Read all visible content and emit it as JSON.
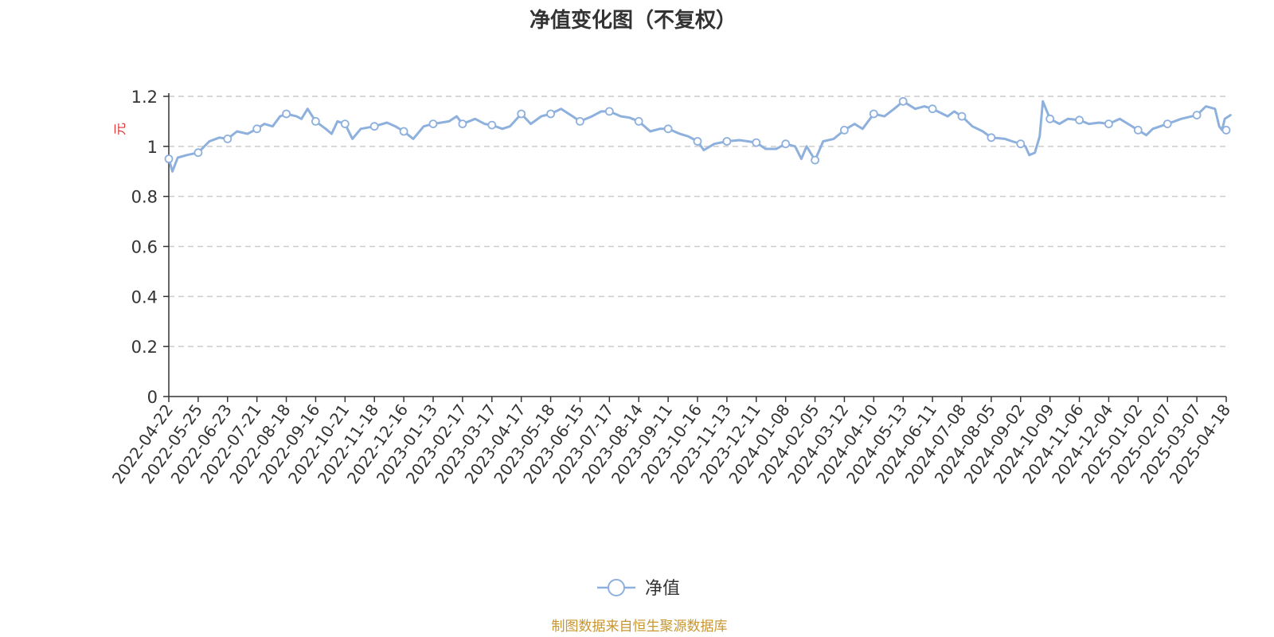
{
  "source_note": "制图数据来自恒生聚源数据库",
  "colors": {
    "series": "#8eb0dd",
    "axis": "#333333",
    "grid": "#cccccc",
    "unit": "#e03030",
    "source": "#c8962e"
  },
  "chart_data": {
    "type": "line",
    "title": "净值变化图（不复权）",
    "xlabel": "",
    "ylabel": "元",
    "ylim": [
      0,
      1.2
    ],
    "yticks": [
      0,
      0.2,
      0.4,
      0.6,
      0.8,
      1,
      1.2
    ],
    "ytick_labels": [
      "0",
      "0.2",
      "0.4",
      "0.6",
      "0.8",
      "1",
      "1.2"
    ],
    "grid": true,
    "grid_style": "dashed",
    "legend": "bottom-center",
    "xticks": [
      "2022-04-22",
      "2022-05-25",
      "2022-06-23",
      "2022-07-21",
      "2022-08-18",
      "2022-09-16",
      "2022-10-21",
      "2022-11-18",
      "2022-12-16",
      "2023-01-13",
      "2023-02-17",
      "2023-03-17",
      "2023-04-17",
      "2023-05-18",
      "2023-06-15",
      "2023-07-17",
      "2023-08-14",
      "2023-09-11",
      "2023-10-16",
      "2023-11-13",
      "2023-12-11",
      "2024-01-08",
      "2024-02-05",
      "2024-03-12",
      "2024-04-10",
      "2024-05-13",
      "2024-06-11",
      "2024-07-08",
      "2024-08-05",
      "2024-09-02",
      "2024-10-09",
      "2024-11-06",
      "2024-12-04",
      "2025-01-02",
      "2025-02-07",
      "2025-03-07",
      "2025-04-18"
    ],
    "series": [
      {
        "name": "净值",
        "x": [
          "2022-04-22",
          "2022-05-25",
          "2022-06-23",
          "2022-07-21",
          "2022-08-18",
          "2022-09-16",
          "2022-10-21",
          "2022-11-18",
          "2022-12-16",
          "2023-01-13",
          "2023-02-17",
          "2023-03-17",
          "2023-04-17",
          "2023-05-18",
          "2023-06-15",
          "2023-07-17",
          "2023-08-14",
          "2023-09-11",
          "2023-10-16",
          "2023-11-13",
          "2023-12-11",
          "2024-01-08",
          "2024-02-05",
          "2024-03-12",
          "2024-04-10",
          "2024-05-13",
          "2024-06-11",
          "2024-07-08",
          "2024-08-05",
          "2024-09-02",
          "2024-10-09",
          "2024-11-06",
          "2024-12-04",
          "2025-01-02",
          "2025-02-07",
          "2025-03-07",
          "2025-04-18"
        ],
        "values": [
          0.95,
          0.975,
          1.03,
          1.07,
          1.13,
          1.1,
          1.09,
          1.08,
          1.06,
          1.09,
          1.09,
          1.085,
          1.13,
          1.13,
          1.1,
          1.14,
          1.1,
          1.07,
          1.02,
          1.02,
          1.015,
          1.01,
          0.945,
          1.065,
          1.13,
          1.18,
          1.15,
          1.12,
          1.035,
          1.01,
          1.11,
          1.105,
          1.09,
          1.065,
          1.09,
          1.125,
          1.065
        ],
        "dense": [
          [
            "2022-04-22",
            0.95
          ],
          [
            "2022-04-26",
            0.9
          ],
          [
            "2022-05-02",
            0.955
          ],
          [
            "2022-05-12",
            0.965
          ],
          [
            "2022-05-25",
            0.975
          ],
          [
            "2022-06-05",
            1.02
          ],
          [
            "2022-06-15",
            1.035
          ],
          [
            "2022-06-23",
            1.03
          ],
          [
            "2022-07-02",
            1.06
          ],
          [
            "2022-07-12",
            1.05
          ],
          [
            "2022-07-21",
            1.07
          ],
          [
            "2022-07-28",
            1.09
          ],
          [
            "2022-08-05",
            1.08
          ],
          [
            "2022-08-12",
            1.12
          ],
          [
            "2022-08-18",
            1.13
          ],
          [
            "2022-08-28",
            1.12
          ],
          [
            "2022-09-02",
            1.11
          ],
          [
            "2022-09-08",
            1.15
          ],
          [
            "2022-09-16",
            1.1
          ],
          [
            "2022-09-28",
            1.07
          ],
          [
            "2022-10-05",
            1.05
          ],
          [
            "2022-10-12",
            1.1
          ],
          [
            "2022-10-21",
            1.09
          ],
          [
            "2022-10-28",
            1.03
          ],
          [
            "2022-11-05",
            1.07
          ],
          [
            "2022-11-18",
            1.08
          ],
          [
            "2022-11-30",
            1.095
          ],
          [
            "2022-12-08",
            1.08
          ],
          [
            "2022-12-16",
            1.06
          ],
          [
            "2022-12-25",
            1.03
          ],
          [
            "2023-01-04",
            1.08
          ],
          [
            "2023-01-13",
            1.09
          ],
          [
            "2023-02-01",
            1.1
          ],
          [
            "2023-02-10",
            1.12
          ],
          [
            "2023-02-17",
            1.09
          ],
          [
            "2023-03-01",
            1.11
          ],
          [
            "2023-03-10",
            1.09
          ],
          [
            "2023-03-17",
            1.085
          ],
          [
            "2023-03-28",
            1.07
          ],
          [
            "2023-04-05",
            1.08
          ],
          [
            "2023-04-17",
            1.13
          ],
          [
            "2023-04-27",
            1.09
          ],
          [
            "2023-05-08",
            1.12
          ],
          [
            "2023-05-18",
            1.13
          ],
          [
            "2023-05-28",
            1.15
          ],
          [
            "2023-06-08",
            1.12
          ],
          [
            "2023-06-15",
            1.1
          ],
          [
            "2023-06-28",
            1.12
          ],
          [
            "2023-07-08",
            1.14
          ],
          [
            "2023-07-17",
            1.14
          ],
          [
            "2023-07-28",
            1.12
          ],
          [
            "2023-08-05",
            1.115
          ],
          [
            "2023-08-14",
            1.1
          ],
          [
            "2023-08-25",
            1.06
          ],
          [
            "2023-09-03",
            1.07
          ],
          [
            "2023-09-11",
            1.07
          ],
          [
            "2023-09-25",
            1.05
          ],
          [
            "2023-10-05",
            1.04
          ],
          [
            "2023-10-16",
            1.02
          ],
          [
            "2023-10-22",
            0.985
          ],
          [
            "2023-11-01",
            1.01
          ],
          [
            "2023-11-13",
            1.02
          ],
          [
            "2023-11-25",
            1.025
          ],
          [
            "2023-12-03",
            1.02
          ],
          [
            "2023-12-11",
            1.015
          ],
          [
            "2023-12-20",
            0.99
          ],
          [
            "2023-12-30",
            0.99
          ],
          [
            "2024-01-08",
            1.01
          ],
          [
            "2024-01-17",
            1.0
          ],
          [
            "2024-01-23",
            0.95
          ],
          [
            "2024-01-28",
            1.0
          ],
          [
            "2024-02-05",
            0.945
          ],
          [
            "2024-02-15",
            1.02
          ],
          [
            "2024-02-28",
            1.03
          ],
          [
            "2024-03-12",
            1.065
          ],
          [
            "2024-03-22",
            1.09
          ],
          [
            "2024-03-30",
            1.07
          ],
          [
            "2024-04-10",
            1.13
          ],
          [
            "2024-04-22",
            1.12
          ],
          [
            "2024-05-03",
            1.15
          ],
          [
            "2024-05-13",
            1.18
          ],
          [
            "2024-05-25",
            1.15
          ],
          [
            "2024-06-03",
            1.16
          ],
          [
            "2024-06-11",
            1.15
          ],
          [
            "2024-06-25",
            1.12
          ],
          [
            "2024-07-01",
            1.14
          ],
          [
            "2024-07-08",
            1.12
          ],
          [
            "2024-07-18",
            1.08
          ],
          [
            "2024-07-28",
            1.06
          ],
          [
            "2024-08-05",
            1.035
          ],
          [
            "2024-08-18",
            1.03
          ],
          [
            "2024-08-25",
            1.02
          ],
          [
            "2024-09-02",
            1.01
          ],
          [
            "2024-09-08",
            1.0
          ],
          [
            "2024-09-13",
            0.965
          ],
          [
            "2024-09-20",
            0.975
          ],
          [
            "2024-09-26",
            1.04
          ],
          [
            "2024-09-30",
            1.18
          ],
          [
            "2024-10-09",
            1.11
          ],
          [
            "2024-10-18",
            1.09
          ],
          [
            "2024-10-26",
            1.11
          ],
          [
            "2024-11-06",
            1.105
          ],
          [
            "2024-11-15",
            1.09
          ],
          [
            "2024-11-25",
            1.095
          ],
          [
            "2024-12-04",
            1.09
          ],
          [
            "2024-12-15",
            1.11
          ],
          [
            "2024-12-25",
            1.085
          ],
          [
            "2025-01-02",
            1.065
          ],
          [
            "2025-01-12",
            1.045
          ],
          [
            "2025-01-20",
            1.07
          ],
          [
            "2025-02-07",
            1.09
          ],
          [
            "2025-02-20",
            1.11
          ],
          [
            "2025-03-07",
            1.125
          ],
          [
            "2025-03-20",
            1.16
          ],
          [
            "2025-04-02",
            1.15
          ],
          [
            "2025-04-08",
            1.08
          ],
          [
            "2025-04-12",
            1.065
          ],
          [
            "2025-04-16",
            1.11
          ],
          [
            "2025-04-24",
            1.125
          ]
        ]
      }
    ]
  }
}
